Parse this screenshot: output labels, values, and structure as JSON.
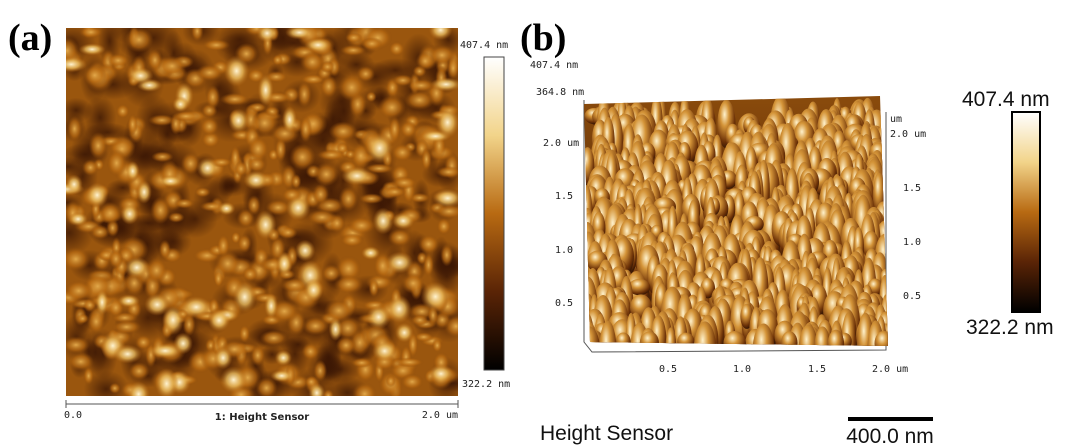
{
  "panel_a": {
    "label": "(a)",
    "colorbar": {
      "max": "407.4 nm",
      "min": "322.2 nm"
    },
    "x_axis": {
      "start": "0.0",
      "title": "1: Height Sensor",
      "end": "2.0 um"
    }
  },
  "panel_b": {
    "label": "(b)",
    "z_labels": [
      "407.4 nm",
      "364.8 nm"
    ],
    "left_ticks": [
      "2.0 um",
      "1.5",
      "1.0",
      "0.5"
    ],
    "right_unit": "um",
    "right_ticks": [
      "2.0 um",
      "1.5",
      "1.0",
      "0.5"
    ],
    "x_ticks": [
      "0.5",
      "1.0",
      "1.5",
      "2.0 um"
    ],
    "colorbar": {
      "max": "407.4 nm",
      "min": "322.2 nm"
    },
    "footer": "Height Sensor",
    "scale_bar": "400.0 nm"
  }
}
